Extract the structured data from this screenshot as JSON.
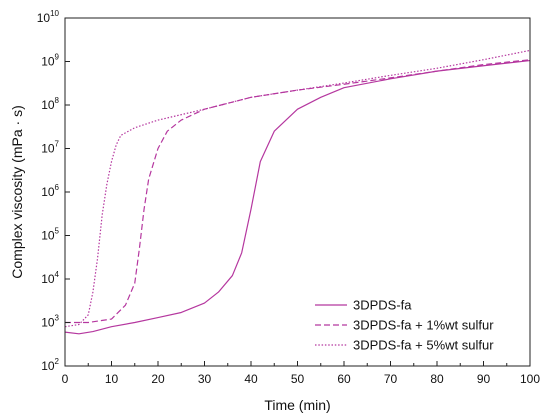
{
  "chart_data": {
    "type": "line",
    "xlabel": "Time (min)",
    "ylabel": "Complex viscosity (mPa · s)",
    "xlim": [
      0,
      100
    ],
    "ylim_log10": [
      2,
      10
    ],
    "y_scale": "log",
    "grid": false,
    "legend_position": "bottom-right",
    "x_ticks": [
      "0",
      "10",
      "20",
      "30",
      "40",
      "50",
      "60",
      "70",
      "80",
      "90",
      "100"
    ],
    "y_ticks": [
      {
        "base": "10",
        "exp": "2"
      },
      {
        "base": "10",
        "exp": "3"
      },
      {
        "base": "10",
        "exp": "4"
      },
      {
        "base": "10",
        "exp": "5"
      },
      {
        "base": "10",
        "exp": "6"
      },
      {
        "base": "10",
        "exp": "7"
      },
      {
        "base": "10",
        "exp": "8"
      },
      {
        "base": "10",
        "exp": "9"
      },
      {
        "base": "10",
        "exp": "10"
      }
    ],
    "color": "#b5379f",
    "series": [
      {
        "name": "3DPDS-fa",
        "style": "solid",
        "x": [
          0,
          3,
          6,
          10,
          15,
          20,
          25,
          30,
          33,
          36,
          38,
          40,
          42,
          45,
          50,
          55,
          60,
          70,
          80,
          90,
          100
        ],
        "y": [
          600,
          550,
          620,
          800,
          1000,
          1300,
          1700,
          2800,
          5000,
          12000,
          40000,
          400000,
          5000000,
          25000000,
          80000000,
          150000000,
          250000000,
          400000000,
          600000000,
          800000000,
          1050000000
        ]
      },
      {
        "name": "3DPDS-fa + 1%wt sulfur",
        "style": "dashed",
        "x": [
          0,
          5,
          10,
          13,
          15,
          16,
          17,
          18,
          20,
          22,
          25,
          30,
          40,
          50,
          60,
          70,
          80,
          90,
          100
        ],
        "y": [
          1000,
          1000,
          1200,
          2500,
          8000,
          50000,
          400000,
          2000000,
          10000000,
          25000000,
          45000000,
          80000000,
          150000000,
          220000000,
          300000000,
          420000000,
          600000000,
          850000000,
          1100000000
        ]
      },
      {
        "name": "3DPDS-fa + 5%wt sulfur",
        "style": "dotted",
        "x": [
          0,
          3,
          5,
          6,
          7,
          8,
          9,
          10,
          11,
          12,
          15,
          20,
          30,
          40,
          50,
          60,
          70,
          80,
          90,
          100
        ],
        "y": [
          800,
          900,
          1500,
          5000,
          30000,
          300000,
          1500000,
          5000000,
          12000000,
          20000000,
          30000000,
          45000000,
          80000000,
          150000000,
          220000000,
          320000000,
          480000000,
          700000000,
          1100000000,
          1800000000
        ]
      }
    ]
  }
}
